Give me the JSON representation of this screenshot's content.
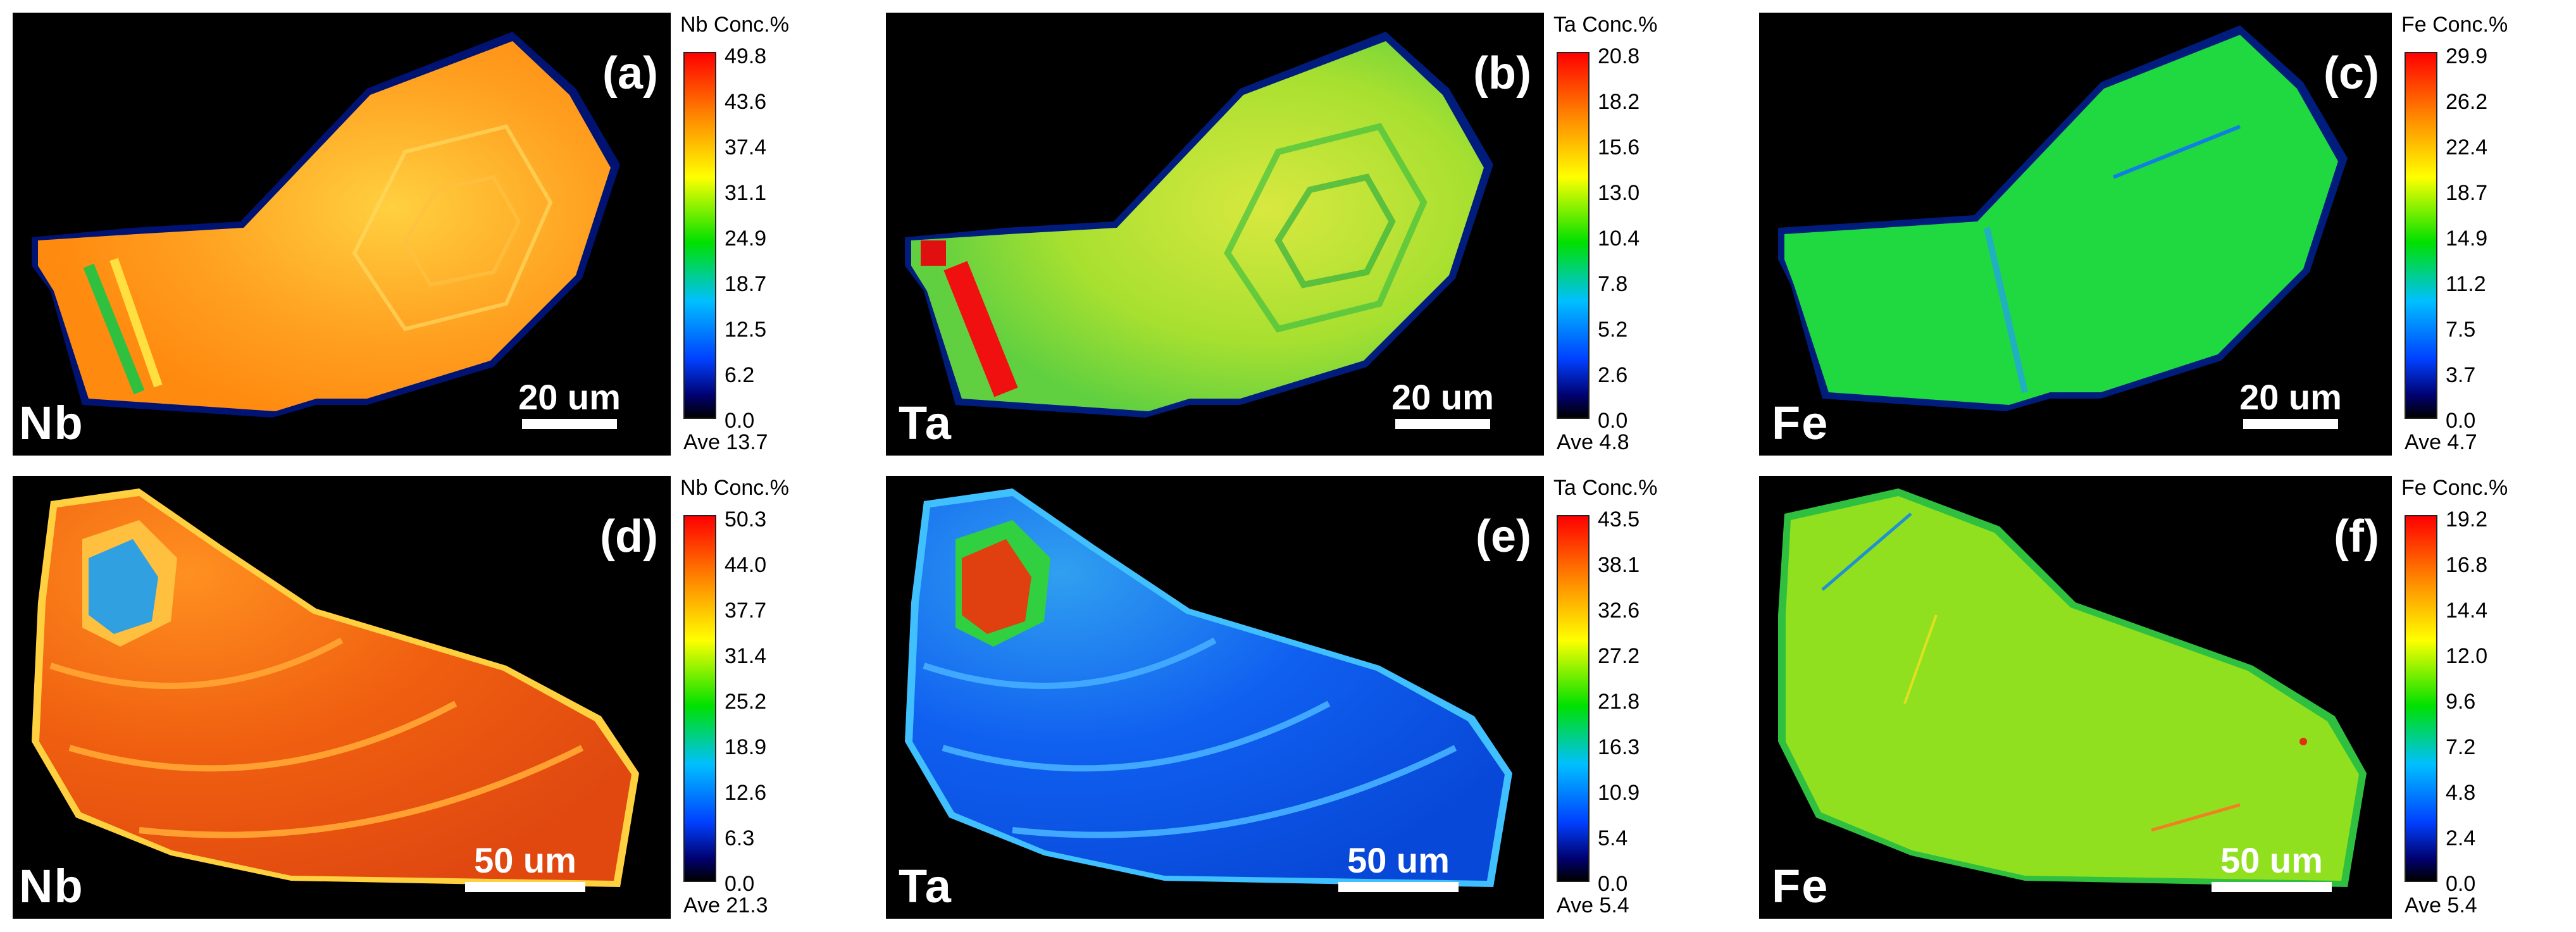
{
  "panels": [
    {
      "letter": "(a)",
      "element": "Nb",
      "scale": "20 um",
      "colorbar": {
        "title": "Nb  Conc.%",
        "ticks": [
          "49.8",
          "43.6",
          "37.4",
          "31.1",
          "24.9",
          "18.7",
          "12.5",
          "6.2",
          "0.0"
        ],
        "average": "Ave 13.7"
      },
      "dominant_color": "#ffa020"
    },
    {
      "letter": "(b)",
      "element": "Ta",
      "scale": "20 um",
      "colorbar": {
        "title": "Ta  Conc.%",
        "ticks": [
          "20.8",
          "18.2",
          "15.6",
          "13.0",
          "10.4",
          "7.8",
          "5.2",
          "2.6",
          "0.0"
        ],
        "average": "Ave 4.8"
      },
      "dominant_color": "#a8e030"
    },
    {
      "letter": "(c)",
      "element": "Fe",
      "scale": "20 um",
      "colorbar": {
        "title": "Fe  Conc.%",
        "ticks": [
          "29.9",
          "26.2",
          "22.4",
          "18.7",
          "14.9",
          "11.2",
          "7.5",
          "3.7",
          "0.0"
        ],
        "average": "Ave 4.7"
      },
      "dominant_color": "#20d840"
    },
    {
      "letter": "(d)",
      "element": "Nb",
      "scale": "50 um",
      "colorbar": {
        "title": "Nb  Conc.%",
        "ticks": [
          "50.3",
          "44.0",
          "37.7",
          "31.4",
          "25.2",
          "18.9",
          "12.6",
          "6.3",
          "0.0"
        ],
        "average": "Ave 21.3"
      },
      "dominant_color": "#f06010"
    },
    {
      "letter": "(e)",
      "element": "Ta",
      "scale": "50 um",
      "colorbar": {
        "title": "Ta  Conc.%",
        "ticks": [
          "43.5",
          "38.1",
          "32.6",
          "27.2",
          "21.8",
          "16.3",
          "10.9",
          "5.4",
          "0.0"
        ],
        "average": "Ave 5.4"
      },
      "dominant_color": "#1060f0"
    },
    {
      "letter": "(f)",
      "element": "Fe",
      "scale": "50 um",
      "colorbar": {
        "title": "Fe  Conc.%",
        "ticks": [
          "19.2",
          "16.8",
          "14.4",
          "12.0",
          "9.6",
          "7.2",
          "4.8",
          "2.4",
          "0.0"
        ],
        "average": "Ave 5.4"
      },
      "dominant_color": "#90e020"
    }
  ]
}
